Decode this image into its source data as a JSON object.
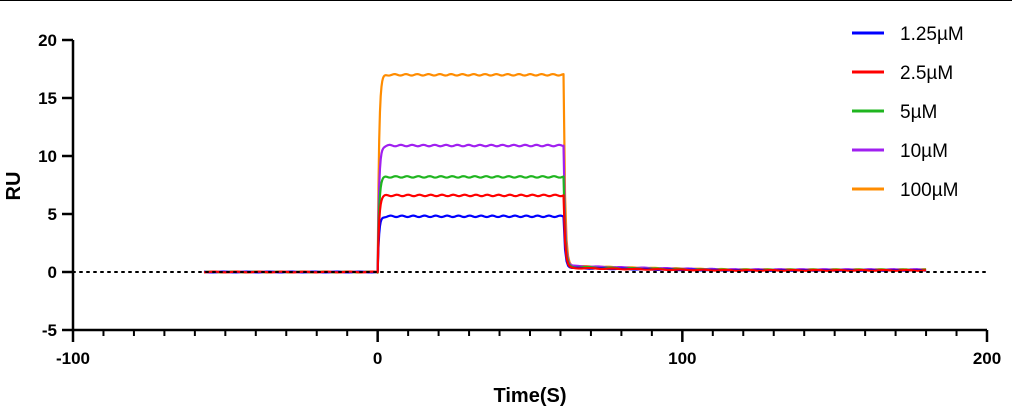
{
  "chart_data": {
    "type": "line",
    "title": "",
    "xlabel": "Time(S)",
    "ylabel": "RU",
    "xlim": [
      -100,
      200
    ],
    "ylim": [
      -5,
      20
    ],
    "x_major_ticks": [
      -100,
      0,
      100,
      200
    ],
    "x_minor_step": 10,
    "y_ticks": [
      -5,
      0,
      5,
      10,
      15,
      20
    ],
    "baseline": {
      "y": 0,
      "style": "dotted"
    },
    "grid": false,
    "legend": "top-right",
    "series": [
      {
        "name": "100µM",
        "color": "#ff8c00",
        "baseline_x": [
          -57,
          0
        ],
        "association_x": [
          0,
          61
        ],
        "dissociation_x": [
          61,
          180
        ],
        "plateau": 17.0,
        "dissociation_level": 0.3
      },
      {
        "name": "10µM",
        "color": "#a020f0",
        "baseline_x": [
          -57,
          0
        ],
        "association_x": [
          0,
          61
        ],
        "dissociation_x": [
          61,
          180
        ],
        "plateau": 10.9,
        "dissociation_level": 0.3
      },
      {
        "name": "5µM",
        "color": "#1fb51f",
        "baseline_x": [
          -57,
          0
        ],
        "association_x": [
          0,
          61
        ],
        "dissociation_x": [
          61,
          180
        ],
        "plateau": 8.2,
        "dissociation_level": 0.25
      },
      {
        "name": "1.25µM",
        "color": "#0000ff",
        "baseline_x": [
          -57,
          0
        ],
        "association_x": [
          0,
          61
        ],
        "dissociation_x": [
          61,
          180
        ],
        "plateau": 4.8,
        "dissociation_level": 0.2
      },
      {
        "name": "2.5µM",
        "color": "#ff0000",
        "baseline_x": [
          -57,
          0
        ],
        "association_x": [
          0,
          61
        ],
        "dissociation_x": [
          61,
          180
        ],
        "plateau": 6.6,
        "dissociation_level": 0.2
      }
    ],
    "legend_order": [
      "1.25µM",
      "2.5µM",
      "5µM",
      "10µM",
      "100µM"
    ]
  }
}
